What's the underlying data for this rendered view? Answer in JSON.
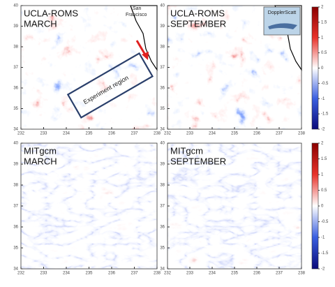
{
  "panels": [
    {
      "title_lines": [
        "UCLA-ROMS",
        "MARCH"
      ],
      "xticks": [
        232,
        233,
        234,
        235,
        236,
        237,
        238
      ],
      "yticks": [
        34,
        35,
        36,
        37,
        38,
        39,
        40
      ]
    },
    {
      "title_lines": [
        "UCLA-ROMS",
        "SEPTEMBER"
      ],
      "xticks": [
        232,
        233,
        234,
        235,
        236,
        237,
        238
      ],
      "yticks": [
        34,
        35,
        36,
        37,
        38,
        39,
        40
      ]
    },
    {
      "title_lines": [
        "MITgcm",
        "MARCH"
      ],
      "xticks": [
        232,
        233,
        234,
        235,
        236,
        237,
        238
      ],
      "yticks": [
        34,
        35,
        36,
        37,
        38,
        39,
        40
      ]
    },
    {
      "title_lines": [
        "MITgcm",
        "SEPTEMBER"
      ],
      "xticks": [
        232,
        233,
        234,
        235,
        236,
        237,
        238
      ],
      "yticks": [
        34,
        35,
        36,
        37,
        38,
        39,
        40
      ]
    }
  ],
  "annotations": {
    "city_lines": [
      "San",
      "Francisco"
    ],
    "region": "Experiment region",
    "instrument": "DopplerScatt"
  },
  "colorbars": [
    {
      "ticks": [
        2,
        1.5,
        1,
        0.5,
        0,
        -0.5,
        -1,
        -1.5,
        -2
      ]
    },
    {
      "ticks": [
        2,
        1.5,
        1,
        0.5,
        0,
        -0.5,
        -1,
        -1.5,
        -2
      ]
    }
  ]
}
